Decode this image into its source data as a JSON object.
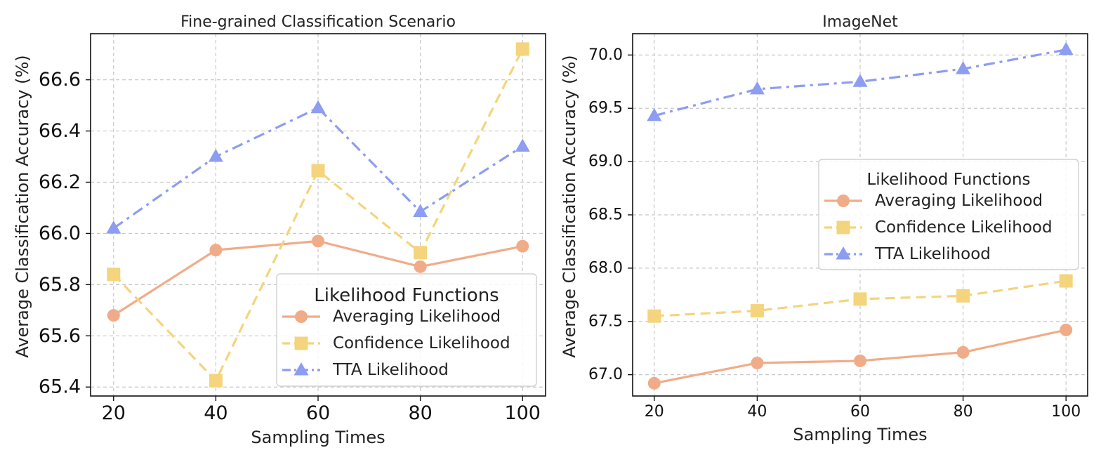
{
  "chart_data": [
    {
      "type": "line",
      "title": "Fine-grained Classification Scenario",
      "xlabel": "Sampling Times",
      "ylabel": "Average Classification Accuracy (%)",
      "x": [
        20,
        40,
        60,
        80,
        100
      ],
      "xticks": [
        "20",
        "40",
        "60",
        "80",
        "100"
      ],
      "yticks": [
        "65.4",
        "65.6",
        "65.8",
        "66.0",
        "66.2",
        "66.4",
        "66.6"
      ],
      "xlim": [
        15.5,
        104.5
      ],
      "ylim": [
        65.365,
        66.78
      ],
      "grid": true,
      "legend_position": "lower-right",
      "legend_title": "Likelihood Functions",
      "series": [
        {
          "name": "Averaging Likelihood",
          "values": [
            65.68,
            65.935,
            65.97,
            65.87,
            65.95
          ],
          "color": "#F0AC88",
          "marker": "circle",
          "linestyle": "solid"
        },
        {
          "name": "Confidence Likelihood",
          "values": [
            65.84,
            65.425,
            66.245,
            65.925,
            66.72
          ],
          "color": "#F4D47C",
          "marker": "square",
          "linestyle": "dashed"
        },
        {
          "name": "TTA Likelihood",
          "values": [
            66.02,
            66.3,
            66.49,
            66.085,
            66.34
          ],
          "color": "#8C9DF2",
          "marker": "triangle",
          "linestyle": "dashdot"
        }
      ]
    },
    {
      "type": "line",
      "title": "ImageNet",
      "xlabel": "Sampling Times",
      "ylabel": "Average Classification Accuracy (%)",
      "x": [
        20,
        40,
        60,
        80,
        100
      ],
      "xticks": [
        "20",
        "40",
        "60",
        "80",
        "100"
      ],
      "yticks": [
        "67.0",
        "67.5",
        "68.0",
        "68.5",
        "69.0",
        "69.5",
        "70.0"
      ],
      "xlim": [
        15.8,
        104.2
      ],
      "ylim": [
        66.8,
        70.2
      ],
      "grid": true,
      "legend_position": "center-right",
      "legend_title": "Likelihood Functions",
      "series": [
        {
          "name": "Averaging Likelihood",
          "values": [
            66.92,
            67.11,
            67.13,
            67.21,
            67.42
          ],
          "color": "#F0AC88",
          "marker": "circle",
          "linestyle": "solid"
        },
        {
          "name": "Confidence Likelihood",
          "values": [
            67.55,
            67.6,
            67.71,
            67.74,
            67.88
          ],
          "color": "#F4D47C",
          "marker": "square",
          "linestyle": "dashed"
        },
        {
          "name": "TTA Likelihood",
          "values": [
            69.43,
            69.68,
            69.75,
            69.87,
            70.05
          ],
          "color": "#8C9DF2",
          "marker": "triangle",
          "linestyle": "dashdot"
        }
      ]
    }
  ]
}
